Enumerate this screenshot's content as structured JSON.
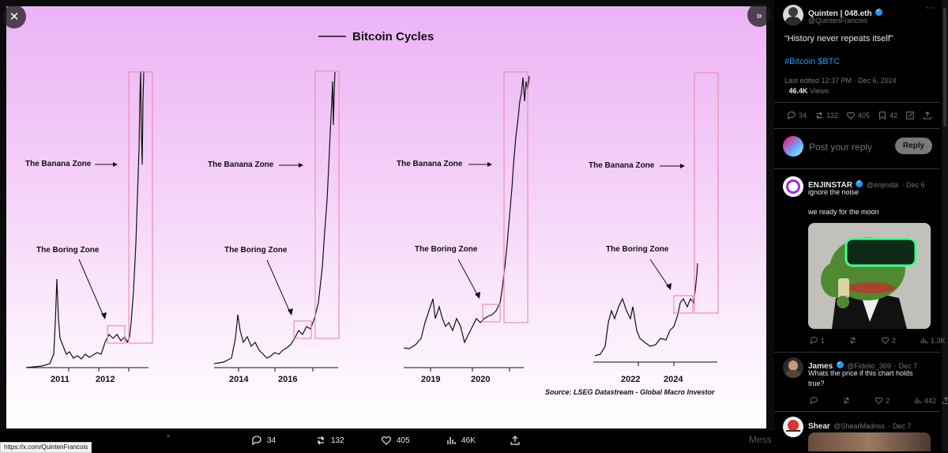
{
  "media": {
    "chart_title": "Bitcoin Cycles",
    "banana_label": "The Banana Zone",
    "boring_label": "The Boring Zone",
    "source": "Source: LSEG Datastream - Global Macro Investor",
    "panels": [
      {
        "years": [
          "2011",
          "2012"
        ]
      },
      {
        "years": [
          "2014",
          "2016"
        ]
      },
      {
        "years": [
          "2019",
          "2020"
        ]
      },
      {
        "years": [
          "2022",
          "2024"
        ]
      }
    ],
    "colors": {
      "box": "#ee8fb0",
      "line": "#111111"
    }
  },
  "viewer": {
    "close_icon": "close-icon",
    "expand_icon": "chevron-right-icon",
    "actions": {
      "replies": "34",
      "reposts": "132",
      "likes": "405",
      "views": "46K"
    },
    "status_url": "https://x.com/QuintenFrancois"
  },
  "post": {
    "author_name": "Quinten | 048.eth",
    "handle": "@QuintenFrancois",
    "text": "“History never repeats itself”",
    "hashtags": "#Bitcoin $BTC",
    "edited": "Last edited 12:37 PM · Dec 6, 2024",
    "views_count": "46.4K",
    "views_label": "Views",
    "stats": {
      "replies": "34",
      "reposts": "132",
      "likes": "405",
      "bookmarks": "42"
    },
    "reply_placeholder": "Post your reply",
    "reply_button": "Reply"
  },
  "replies": [
    {
      "name": "ENJINSTAR",
      "handle": "@enjinsta",
      "date": "· Dec 6",
      "line1": "ignore the noise",
      "line2": "we ready for the moon",
      "stats": {
        "replies": "1",
        "likes": "2",
        "views": "1.3K"
      }
    },
    {
      "name": "James",
      "handle": "@Fidelio_369",
      "date": "· Dec 7",
      "line1": "Whats the price if this chart holds",
      "line2": "true?",
      "stats": {
        "replies": "0",
        "likes": "2",
        "views": "442"
      }
    },
    {
      "name": "Shear",
      "handle": "@ShearMadnss",
      "date": "· Dec 7"
    }
  ],
  "ghost_message": "Mess"
}
